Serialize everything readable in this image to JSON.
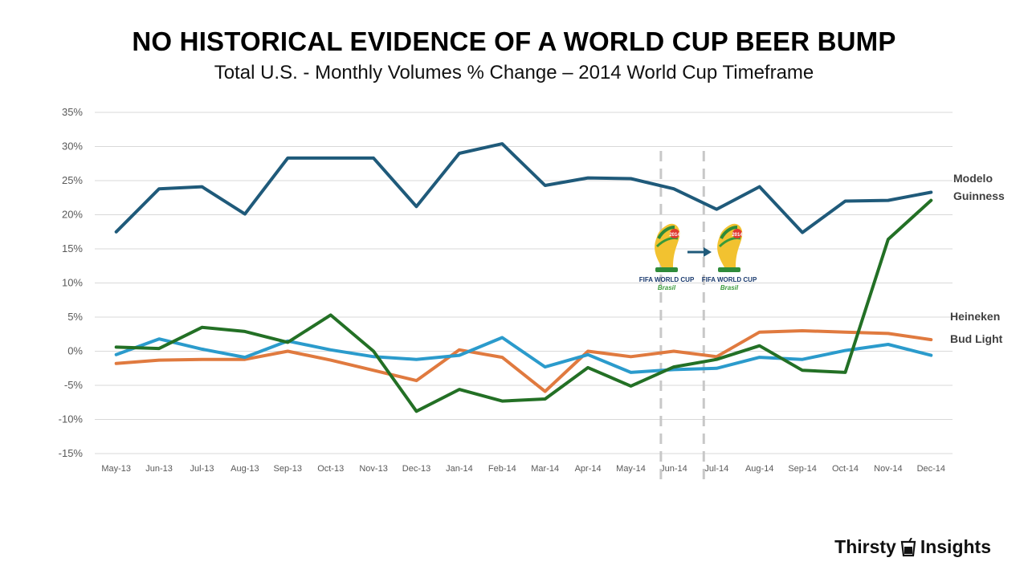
{
  "title": "NO HISTORICAL EVIDENCE OF A WORLD CUP BEER BUMP",
  "subtitle": "Total U.S. - Monthly Volumes % Change – 2014 World Cup Timeframe",
  "brand": {
    "word1": "Thirsty",
    "word2": "Insights",
    "icon": "cup-icon"
  },
  "logo": {
    "caption": "FIFA WORLD CUP",
    "sub": "Brasil",
    "year": "2014",
    "icon": "world-cup-trophy-icon",
    "arrow_icon": "right-arrow-icon"
  },
  "chart_data": {
    "type": "line",
    "title": "NO HISTORICAL EVIDENCE OF A WORLD CUP BEER BUMP",
    "xlabel": "",
    "ylabel": "",
    "ylim": [
      -15,
      35
    ],
    "yticks": [
      35,
      30,
      25,
      20,
      15,
      10,
      5,
      0,
      -5,
      -10,
      -15
    ],
    "ytick_labels": [
      "35%",
      "30%",
      "25%",
      "20%",
      "15%",
      "10%",
      "5%",
      "0%",
      "-5%",
      "-10%",
      "-15%"
    ],
    "grid": true,
    "categories": [
      "May-13",
      "Jun-13",
      "Jul-13",
      "Aug-13",
      "Sep-13",
      "Oct-13",
      "Nov-13",
      "Dec-13",
      "Jan-14",
      "Feb-14",
      "Mar-14",
      "Apr-14",
      "May-14",
      "Jun-14",
      "Jul-14",
      "Aug-14",
      "Sep-14",
      "Oct-14",
      "Nov-14",
      "Dec-14"
    ],
    "highlight_categories": [
      "Jun-14",
      "Jul-14"
    ],
    "series": [
      {
        "name": "Modelo",
        "color": "#1f5a7a",
        "values": [
          17.5,
          23.8,
          24.1,
          20.1,
          28.3,
          28.3,
          28.3,
          21.2,
          29.0,
          30.4,
          24.3,
          25.4,
          25.3,
          23.8,
          20.8,
          24.1,
          17.4,
          22.0,
          22.1,
          23.3
        ]
      },
      {
        "name": "Guinness",
        "color": "#237025",
        "values": [
          0.6,
          0.4,
          3.5,
          2.9,
          1.3,
          5.3,
          0.0,
          -8.8,
          -5.6,
          -7.3,
          -7.0,
          -2.4,
          -5.1,
          -2.3,
          -1.2,
          0.8,
          -2.8,
          -3.1,
          16.4,
          22.1
        ]
      },
      {
        "name": "Heineken",
        "color": "#e07a3f",
        "values": [
          -1.8,
          -1.3,
          -1.2,
          -1.2,
          0.0,
          -1.3,
          -2.8,
          -4.3,
          0.2,
          -0.9,
          -5.9,
          0.0,
          -0.8,
          0.0,
          -0.8,
          2.8,
          3.0,
          2.8,
          2.6,
          1.7
        ]
      },
      {
        "name": "Bud Light",
        "color": "#2b9bcc",
        "values": [
          -0.5,
          1.8,
          0.3,
          -0.9,
          1.5,
          0.2,
          -0.8,
          -1.2,
          -0.6,
          2.0,
          -2.3,
          -0.5,
          -3.1,
          -2.7,
          -2.5,
          -0.9,
          -1.2,
          0.1,
          1.0,
          -0.6
        ]
      }
    ],
    "series_labels": [
      "Modelo",
      "Guinness",
      "Heineken",
      "Bud Light"
    ]
  }
}
